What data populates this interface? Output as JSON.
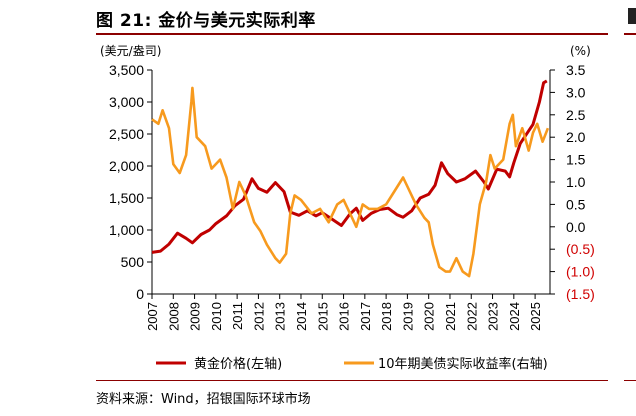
{
  "title": "图 21: 金价与美元实际利率",
  "source": "资料来源：Wind，招银国际环球市场",
  "colors": {
    "gold": "#c00000",
    "rate": "#f79a1e",
    "rule": "#8b0000",
    "negative": "#d00000"
  },
  "chart_data": {
    "type": "line",
    "title": "图 21: 金价与美元实际利率",
    "y_left_label": "(美元/盎司)",
    "y_right_label": "(%)",
    "y_left_ticks": [
      "0",
      "500",
      "1,000",
      "1,500",
      "2,000",
      "2,500",
      "3,000",
      "3,500"
    ],
    "y_right_ticks": [
      "(1.5)",
      "(1.0)",
      "(0.5)",
      "0.0",
      "0.5",
      "1.0",
      "1.5",
      "2.0",
      "2.5",
      "3.0",
      "3.5"
    ],
    "x_ticks": [
      "2007",
      "2008",
      "2009",
      "2010",
      "2011",
      "2012",
      "2013",
      "2014",
      "2015",
      "2016",
      "2017",
      "2018",
      "2019",
      "2020",
      "2021",
      "2022",
      "2023",
      "2024",
      "2025"
    ],
    "ylim_left": [
      0,
      3500
    ],
    "ylim_right": [
      -1.5,
      3.5
    ],
    "xlim": [
      2007,
      2025.7
    ],
    "legend_position": "bottom",
    "series": [
      {
        "name": "黄金价格(左轴)",
        "axis": "left",
        "points": [
          [
            2007.0,
            650
          ],
          [
            2007.4,
            670
          ],
          [
            2007.8,
            780
          ],
          [
            2008.2,
            950
          ],
          [
            2008.6,
            870
          ],
          [
            2008.9,
            800
          ],
          [
            2009.3,
            930
          ],
          [
            2009.7,
            1000
          ],
          [
            2010.0,
            1100
          ],
          [
            2010.5,
            1220
          ],
          [
            2010.9,
            1380
          ],
          [
            2011.3,
            1480
          ],
          [
            2011.7,
            1800
          ],
          [
            2012.0,
            1650
          ],
          [
            2012.4,
            1590
          ],
          [
            2012.8,
            1740
          ],
          [
            2013.2,
            1600
          ],
          [
            2013.5,
            1280
          ],
          [
            2013.9,
            1230
          ],
          [
            2014.3,
            1300
          ],
          [
            2014.7,
            1220
          ],
          [
            2015.0,
            1270
          ],
          [
            2015.5,
            1160
          ],
          [
            2015.9,
            1070
          ],
          [
            2016.3,
            1250
          ],
          [
            2016.6,
            1340
          ],
          [
            2016.9,
            1150
          ],
          [
            2017.3,
            1260
          ],
          [
            2017.7,
            1320
          ],
          [
            2018.1,
            1340
          ],
          [
            2018.5,
            1240
          ],
          [
            2018.8,
            1200
          ],
          [
            2019.2,
            1300
          ],
          [
            2019.6,
            1500
          ],
          [
            2020.0,
            1560
          ],
          [
            2020.3,
            1700
          ],
          [
            2020.6,
            2050
          ],
          [
            2020.9,
            1880
          ],
          [
            2021.3,
            1750
          ],
          [
            2021.7,
            1800
          ],
          [
            2022.2,
            1920
          ],
          [
            2022.6,
            1750
          ],
          [
            2022.8,
            1640
          ],
          [
            2023.2,
            1950
          ],
          [
            2023.6,
            1920
          ],
          [
            2023.8,
            1830
          ],
          [
            2024.0,
            2050
          ],
          [
            2024.3,
            2350
          ],
          [
            2024.7,
            2550
          ],
          [
            2024.9,
            2650
          ],
          [
            2025.2,
            3000
          ],
          [
            2025.4,
            3300
          ],
          [
            2025.55,
            3330
          ]
        ]
      },
      {
        "name": "10年期美债实际收益率(右轴)",
        "axis": "right",
        "points": [
          [
            2007.0,
            2.4
          ],
          [
            2007.3,
            2.3
          ],
          [
            2007.5,
            2.6
          ],
          [
            2007.8,
            2.2
          ],
          [
            2008.0,
            1.4
          ],
          [
            2008.3,
            1.2
          ],
          [
            2008.6,
            1.6
          ],
          [
            2008.85,
            2.8
          ],
          [
            2008.9,
            3.1
          ],
          [
            2009.1,
            2.0
          ],
          [
            2009.5,
            1.8
          ],
          [
            2009.8,
            1.3
          ],
          [
            2010.2,
            1.5
          ],
          [
            2010.5,
            1.1
          ],
          [
            2010.8,
            0.4
          ],
          [
            2011.1,
            1.0
          ],
          [
            2011.4,
            0.7
          ],
          [
            2011.8,
            0.1
          ],
          [
            2012.1,
            -0.1
          ],
          [
            2012.4,
            -0.4
          ],
          [
            2012.8,
            -0.7
          ],
          [
            2013.0,
            -0.8
          ],
          [
            2013.3,
            -0.6
          ],
          [
            2013.5,
            0.3
          ],
          [
            2013.7,
            0.7
          ],
          [
            2014.0,
            0.6
          ],
          [
            2014.5,
            0.3
          ],
          [
            2014.9,
            0.4
          ],
          [
            2015.3,
            0.1
          ],
          [
            2015.7,
            0.5
          ],
          [
            2016.0,
            0.6
          ],
          [
            2016.4,
            0.2
          ],
          [
            2016.6,
            0.0
          ],
          [
            2016.9,
            0.5
          ],
          [
            2017.2,
            0.4
          ],
          [
            2017.6,
            0.4
          ],
          [
            2018.0,
            0.5
          ],
          [
            2018.4,
            0.8
          ],
          [
            2018.8,
            1.1
          ],
          [
            2019.0,
            0.9
          ],
          [
            2019.4,
            0.5
          ],
          [
            2019.8,
            0.2
          ],
          [
            2020.0,
            0.1
          ],
          [
            2020.2,
            -0.4
          ],
          [
            2020.5,
            -0.9
          ],
          [
            2020.8,
            -1.0
          ],
          [
            2021.0,
            -1.0
          ],
          [
            2021.3,
            -0.7
          ],
          [
            2021.6,
            -1.0
          ],
          [
            2021.9,
            -1.1
          ],
          [
            2022.1,
            -0.6
          ],
          [
            2022.4,
            0.5
          ],
          [
            2022.7,
            1.0
          ],
          [
            2022.9,
            1.6
          ],
          [
            2023.1,
            1.3
          ],
          [
            2023.5,
            1.5
          ],
          [
            2023.8,
            2.3
          ],
          [
            2023.95,
            2.5
          ],
          [
            2024.1,
            1.8
          ],
          [
            2024.4,
            2.2
          ],
          [
            2024.7,
            1.7
          ],
          [
            2024.9,
            2.1
          ],
          [
            2025.1,
            2.3
          ],
          [
            2025.35,
            1.9
          ],
          [
            2025.6,
            2.2
          ]
        ]
      }
    ]
  }
}
